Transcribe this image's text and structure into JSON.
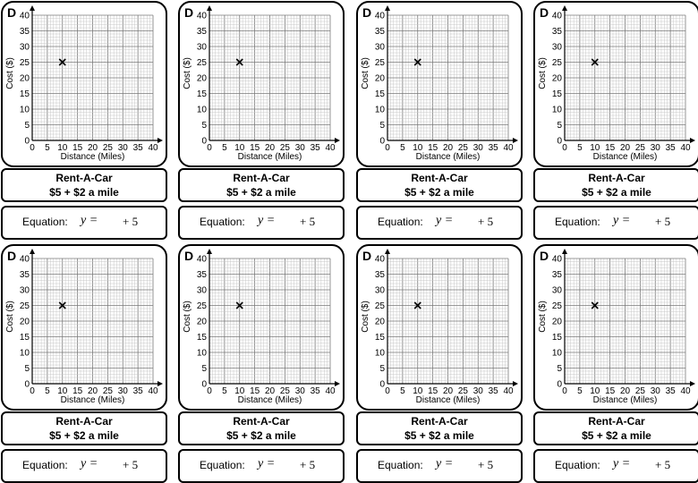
{
  "cards": [
    {
      "letter": "D",
      "company": "Rent-A-Car",
      "offer": "$5 + $2 a mile",
      "eq_label": "Equation:",
      "eq_lhs": "y =",
      "eq_rhs": "+ 5"
    },
    {
      "letter": "D",
      "company": "Rent-A-Car",
      "offer": "$5 + $2 a mile",
      "eq_label": "Equation:",
      "eq_lhs": "y =",
      "eq_rhs": "+ 5"
    },
    {
      "letter": "D",
      "company": "Rent-A-Car",
      "offer": "$5 + $2 a mile",
      "eq_label": "Equation:",
      "eq_lhs": "y =",
      "eq_rhs": "+ 5"
    },
    {
      "letter": "D",
      "company": "Rent-A-Car",
      "offer": "$5 + $2 a mile",
      "eq_label": "Equation:",
      "eq_lhs": "y =",
      "eq_rhs": "+ 5"
    },
    {
      "letter": "D",
      "company": "Rent-A-Car",
      "offer": "$5 + $2 a mile",
      "eq_label": "Equation:",
      "eq_lhs": "y =",
      "eq_rhs": "+ 5"
    },
    {
      "letter": "D",
      "company": "Rent-A-Car",
      "offer": "$5 + $2 a mile",
      "eq_label": "Equation:",
      "eq_lhs": "y =",
      "eq_rhs": "+ 5"
    },
    {
      "letter": "D",
      "company": "Rent-A-Car",
      "offer": "$5 + $2 a mile",
      "eq_label": "Equation:",
      "eq_lhs": "y =",
      "eq_rhs": "+ 5"
    },
    {
      "letter": "D",
      "company": "Rent-A-Car",
      "offer": "$5 + $2 a mile",
      "eq_label": "Equation:",
      "eq_lhs": "y =",
      "eq_rhs": "+ 5"
    }
  ],
  "chart_data": {
    "type": "scatter",
    "xlabel": "Distance (Miles)",
    "ylabel": "Cost ($)",
    "xlim": [
      0,
      40
    ],
    "ylim": [
      0,
      40
    ],
    "x_ticks": [
      0,
      5,
      10,
      15,
      20,
      25,
      30,
      35,
      40
    ],
    "y_ticks": [
      0,
      5,
      10,
      15,
      20,
      25,
      30,
      35,
      40
    ],
    "grid": true,
    "points": [
      {
        "x": 10,
        "y": 25,
        "marker": "×"
      }
    ]
  }
}
